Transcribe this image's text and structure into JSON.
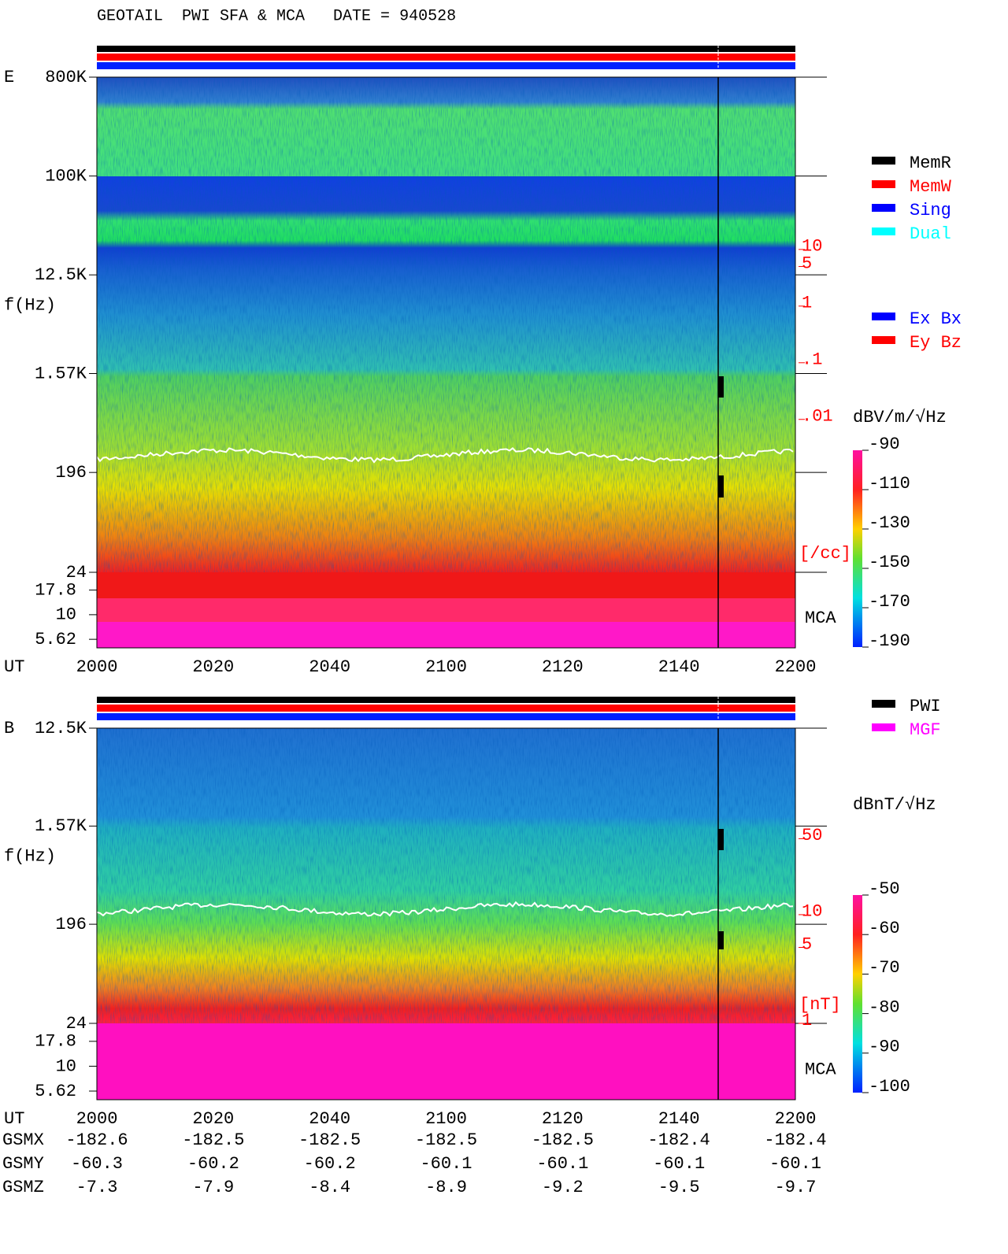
{
  "title": "GEOTAIL  PWI SFA & MCA   DATE = 940528",
  "chart_data": [
    {
      "type": "spectrogram",
      "panel_label": "E",
      "ylabel": "f(Hz)",
      "xlabel": "UT",
      "categories": [
        "2000",
        "2020",
        "2040",
        "2100",
        "2120",
        "2140",
        "2200"
      ],
      "yscale": "log",
      "ylim": [
        24,
        800000
      ],
      "yticks": [
        {
          "value": 800000,
          "label": "800K"
        },
        {
          "value": 100000,
          "label": "100K"
        },
        {
          "value": 12500,
          "label": "12.5K"
        },
        {
          "value": 1570,
          "label": "1.57K"
        },
        196,
        24
      ],
      "mca_label": "MCA",
      "mca_ylim": [
        4.6,
        27
      ],
      "mca_yticks": [
        17.8,
        10,
        5.62
      ],
      "density_label": "[/cc]",
      "density_color": "#ff0000",
      "density_ylim": [
        2e-05,
        11000
      ],
      "density_ticks": [
        10,
        5,
        1,
        {
          "value": 0.1,
          "label": ".1"
        },
        {
          "value": 0.01,
          "label": ".01"
        }
      ],
      "colorbar_label": "dBV/m/√Hz",
      "colorbar_ylim": [
        -190,
        -90
      ],
      "colorbar_ticks": [
        -90,
        -110,
        -130,
        -150,
        -170,
        -190
      ],
      "legend": [
        {
          "name": "MemR",
          "color": "#000000"
        },
        {
          "name": "MemW",
          "color": "#ff0000"
        },
        {
          "name": "Sing",
          "color": "#0000ff"
        },
        {
          "name": "Dual",
          "color": "#00ffff"
        }
      ],
      "legend2": [
        {
          "name": "Ex Bx",
          "color": "#0000ff"
        },
        {
          "name": "Ey Bz",
          "color": "#ff0000"
        }
      ]
    },
    {
      "type": "spectrogram",
      "panel_label": "B",
      "ylabel": "f(Hz)",
      "xlabel": "UT",
      "categories": [
        "2000",
        "2020",
        "2040",
        "2100",
        "2120",
        "2140",
        "2200"
      ],
      "yscale": "log",
      "ylim": [
        24,
        12500
      ],
      "yticks": [
        {
          "value": 12500,
          "label": "12.5K"
        },
        {
          "value": 1570,
          "label": "1.57K"
        },
        196,
        24
      ],
      "mca_label": "MCA",
      "mca_ylim": [
        4.6,
        27
      ],
      "mca_yticks": [
        17.8,
        10,
        5.62
      ],
      "density_label": "[nT]",
      "density_color": "#ff0000",
      "density_ylim": [
        1,
        520
      ],
      "density_ticks": [
        50,
        10,
        5,
        1
      ],
      "colorbar_label": "dBnT/√Hz",
      "colorbar_ylim": [
        -100,
        -50
      ],
      "colorbar_ticks": [
        -50,
        -60,
        -70,
        -80,
        -90,
        -100
      ],
      "legend": [
        {
          "name": "PWI",
          "color": "#000000"
        },
        {
          "name": "MGF",
          "color": "#ff00ff"
        }
      ]
    }
  ],
  "orbit": {
    "labels": [
      "GSMX",
      "GSMY",
      "GSMZ"
    ],
    "rows": [
      [
        -182.6,
        -182.5,
        -182.5,
        -182.5,
        -182.5,
        -182.4,
        -182.4
      ],
      [
        -60.3,
        -60.2,
        -60.2,
        -60.1,
        -60.1,
        -60.1,
        -60.1
      ],
      [
        -7.3,
        -7.9,
        -8.4,
        -8.9,
        -9.2,
        -9.5,
        -9.7
      ]
    ]
  }
}
